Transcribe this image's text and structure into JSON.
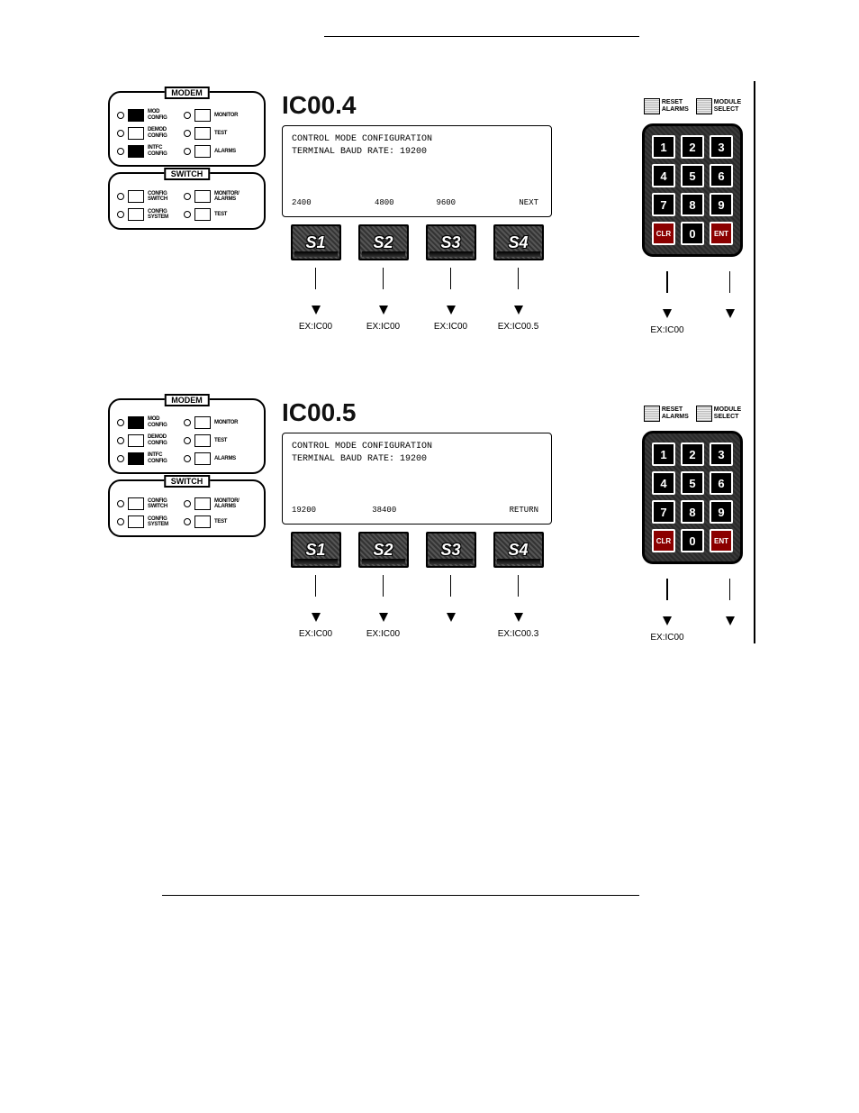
{
  "colors": {
    "bg": "#ffffff",
    "ink": "#000000",
    "keypad_bg": "#303030",
    "key_red": "#8b0000"
  },
  "modemPanel": {
    "title": "MODEM",
    "rows": [
      {
        "leftLabel": "MOD\nCONFIG",
        "leftBlack": true,
        "rightLabel": "MONITOR"
      },
      {
        "leftLabel": "DEMOD\nCONFIG",
        "leftBlack": false,
        "rightLabel": "TEST"
      },
      {
        "leftLabel": "INTFC\nCONFIG",
        "leftBlack": true,
        "rightLabel": "ALARMS"
      }
    ]
  },
  "switchPanel": {
    "title": "SWITCH",
    "rows": [
      {
        "leftLabel": "CONFIG\nSWITCH",
        "rightLabel": "MONITOR/\nALARMS"
      },
      {
        "leftLabel": "CONFIG\nSYSTEM",
        "rightLabel": "TEST"
      }
    ]
  },
  "rightLabels": {
    "reset": "RESET\nALARMS",
    "module": "MODULE\nSELECT"
  },
  "keypad": [
    "1",
    "2",
    "3",
    "4",
    "5",
    "6",
    "7",
    "8",
    "9",
    "CLR",
    "0",
    "ENT"
  ],
  "figures": [
    {
      "id": "IC00.4",
      "lcd": {
        "line1": "CONTROL MODE CONFIGURATION",
        "line2": "TERMINAL BAUD RATE: 19200",
        "soft": [
          "2400",
          "4800",
          "9600",
          "NEXT"
        ]
      },
      "sButtons": [
        "S1",
        "S2",
        "S3",
        "S4"
      ],
      "exits": [
        "EX:IC00",
        "EX:IC00",
        "EX:IC00",
        "EX:IC00.5"
      ],
      "keypadExit": "EX:IC00",
      "showS3Exit": true
    },
    {
      "id": "IC00.5",
      "lcd": {
        "line1": "CONTROL MODE CONFIGURATION",
        "line2": "TERMINAL BAUD RATE: 19200",
        "soft": [
          "19200",
          "38400",
          "",
          "RETURN"
        ]
      },
      "sButtons": [
        "S1",
        "S2",
        "S3",
        "S4"
      ],
      "exits": [
        "EX:IC00",
        "EX:IC00",
        "",
        "EX:IC00.3"
      ],
      "keypadExit": "EX:IC00",
      "showS3Exit": false
    }
  ]
}
